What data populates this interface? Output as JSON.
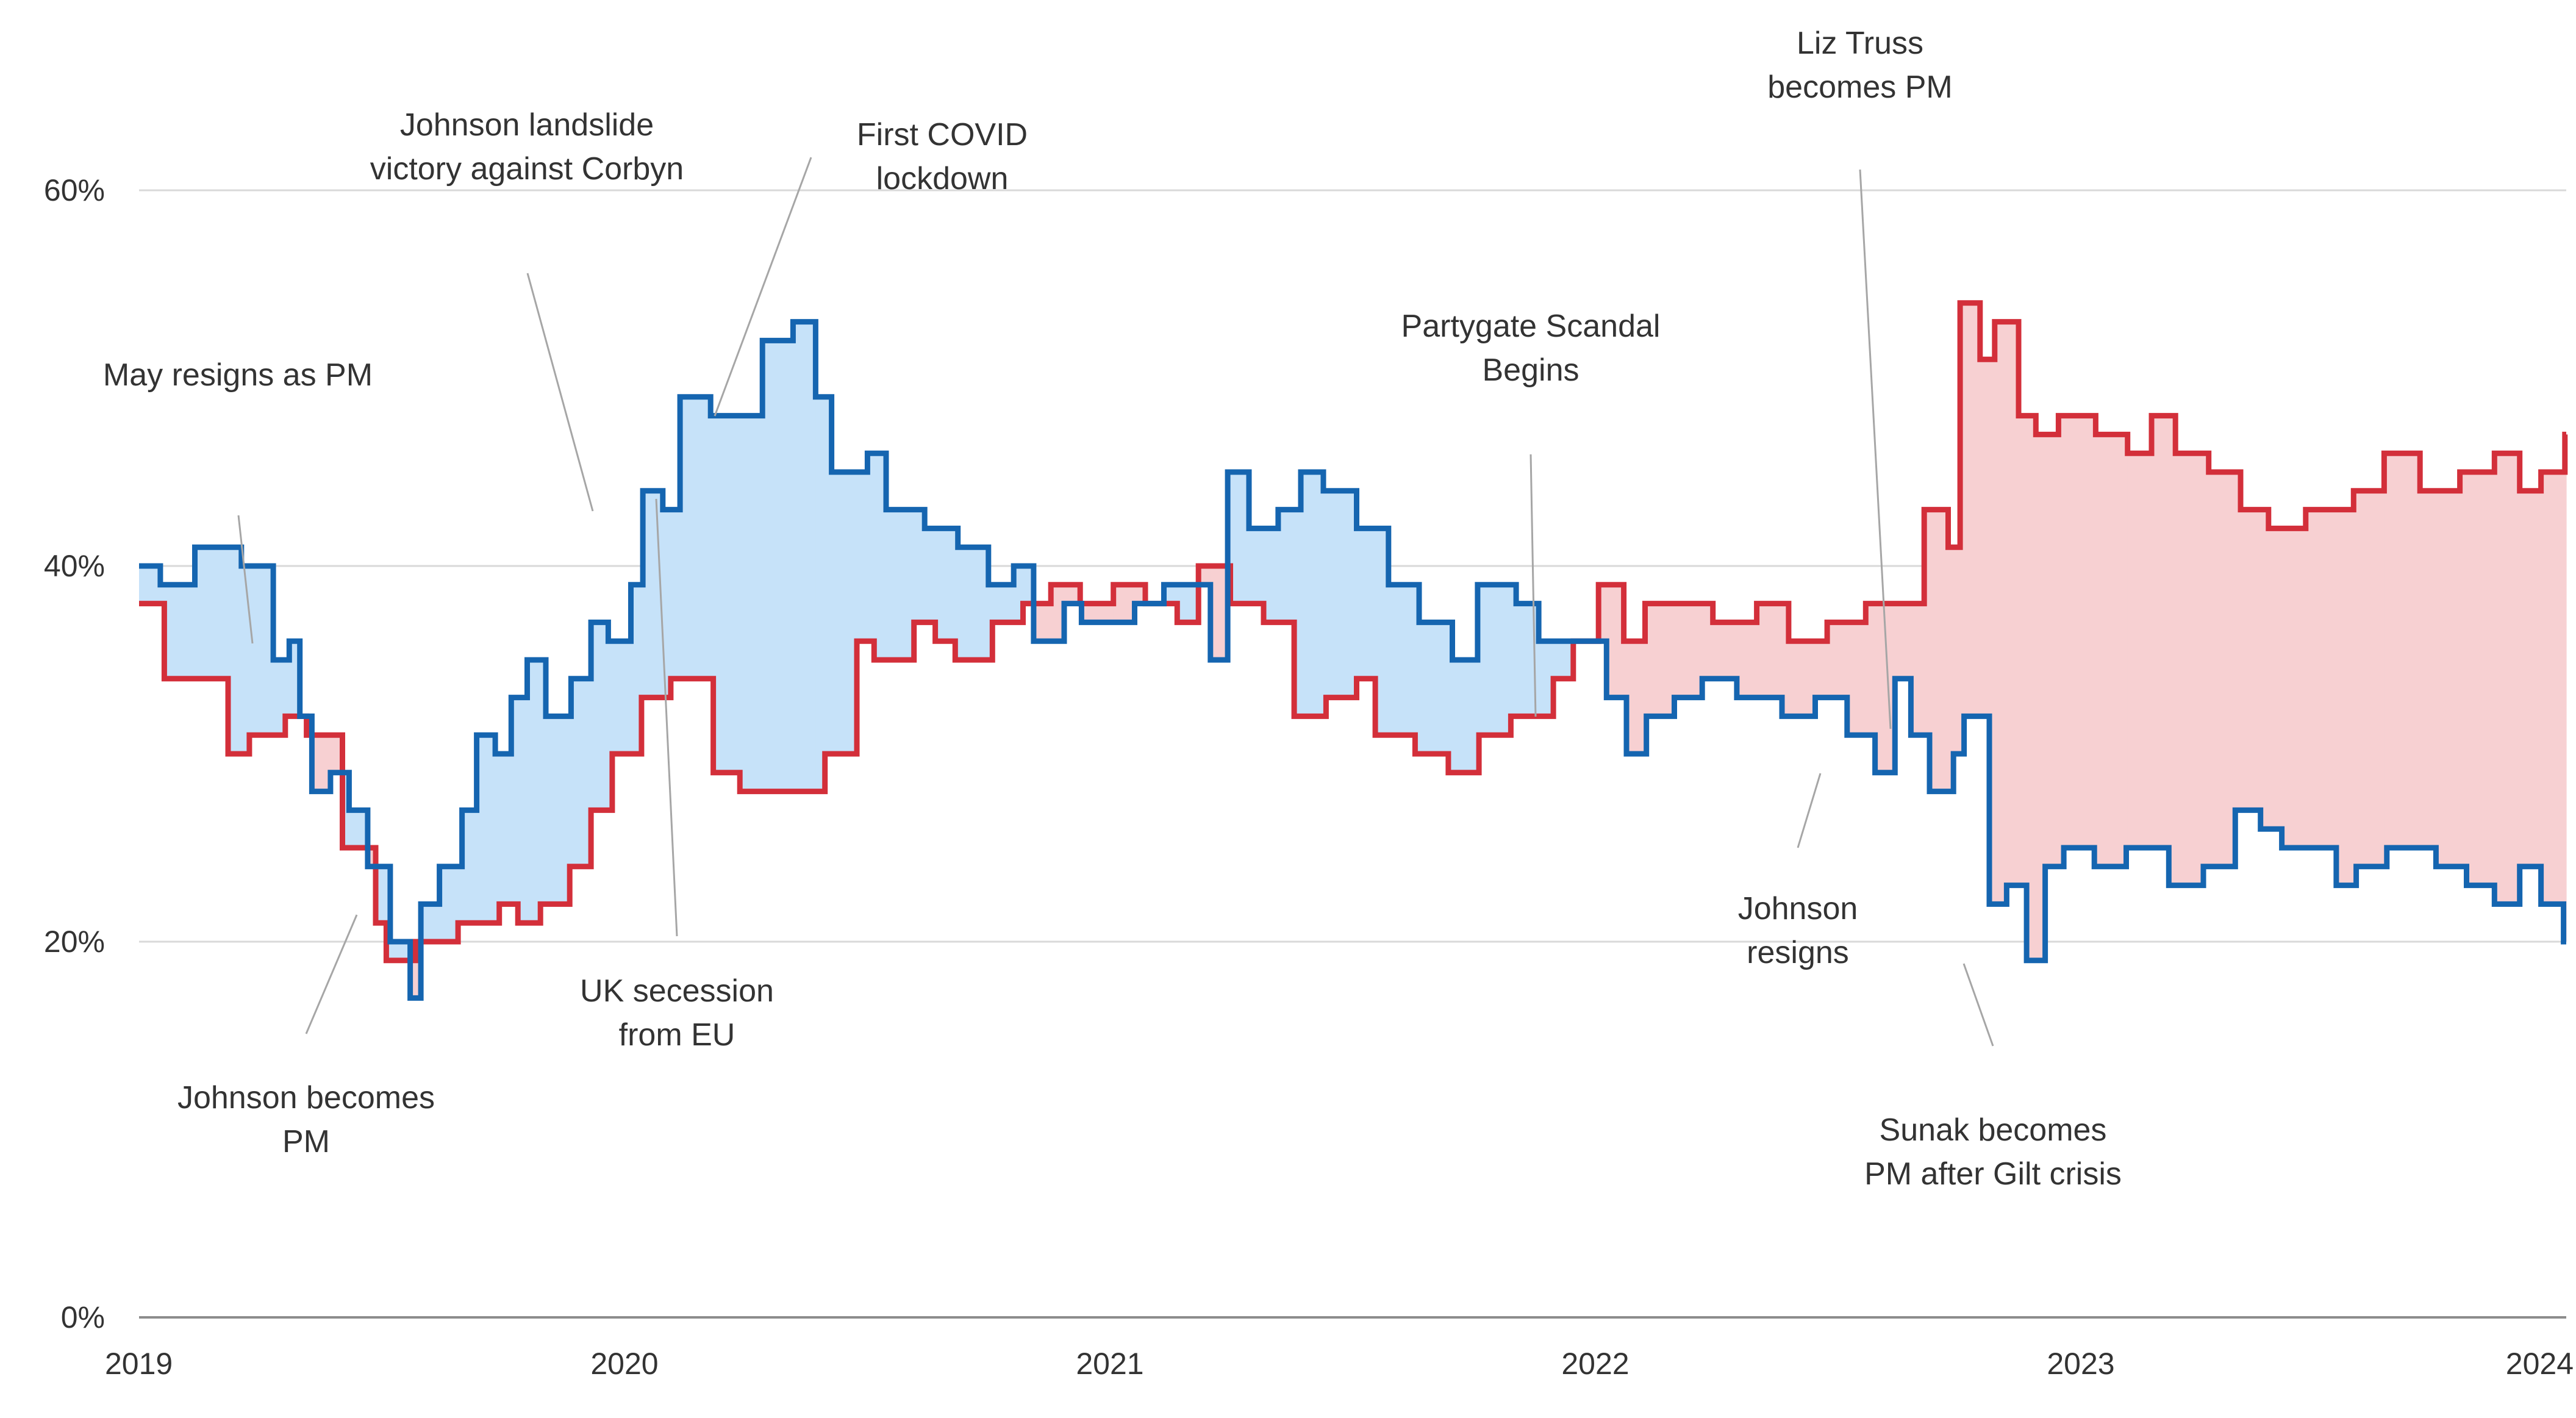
{
  "chart_data": {
    "type": "line",
    "x_axis": {
      "type": "date",
      "min": "2019-01-01",
      "max": "2024-01-01",
      "tick_labels": [
        "2019",
        "2020",
        "2021",
        "2022",
        "2023",
        "2024"
      ]
    },
    "y_axis": {
      "min": 0,
      "max": 60,
      "unit": "%",
      "tick_labels": [
        "0%",
        "20%",
        "40%",
        "60%"
      ]
    },
    "grid": "horizontal",
    "fill_between": true,
    "colors": {
      "blue": "#1565b0",
      "red": "#d32f3a",
      "blue_fill": "#c6e2f9",
      "red_fill": "#f7d0d2"
    },
    "series": [
      {
        "color": "blue",
        "values": [
          [
            "2019-01-01",
            40
          ],
          [
            "2019-01-17",
            39
          ],
          [
            "2019-02-12",
            41
          ],
          [
            "2019-03-19",
            40
          ],
          [
            "2019-04-12",
            35
          ],
          [
            "2019-04-24",
            36
          ],
          [
            "2019-05-02",
            32
          ],
          [
            "2019-05-11",
            28
          ],
          [
            "2019-05-25",
            29
          ],
          [
            "2019-06-08",
            27
          ],
          [
            "2019-06-22",
            24
          ],
          [
            "2019-07-09",
            20
          ],
          [
            "2019-07-24",
            17
          ],
          [
            "2019-08-01",
            22
          ],
          [
            "2019-08-15",
            24
          ],
          [
            "2019-09-01",
            27
          ],
          [
            "2019-09-12",
            31
          ],
          [
            "2019-09-26",
            30
          ],
          [
            "2019-10-08",
            33
          ],
          [
            "2019-10-20",
            35
          ],
          [
            "2019-11-03",
            32
          ],
          [
            "2019-11-22",
            34
          ],
          [
            "2019-12-07",
            37
          ],
          [
            "2019-12-20",
            36
          ],
          [
            "2020-01-06",
            39
          ],
          [
            "2020-01-15",
            44
          ],
          [
            "2020-01-30",
            43
          ],
          [
            "2020-02-12",
            49
          ],
          [
            "2020-03-06",
            48
          ],
          [
            "2020-04-14",
            52
          ],
          [
            "2020-05-07",
            53
          ],
          [
            "2020-05-24",
            49
          ],
          [
            "2020-06-05",
            45
          ],
          [
            "2020-07-02",
            46
          ],
          [
            "2020-07-16",
            43
          ],
          [
            "2020-08-14",
            42
          ],
          [
            "2020-09-08",
            41
          ],
          [
            "2020-10-01",
            39
          ],
          [
            "2020-10-20",
            40
          ],
          [
            "2020-11-04",
            36
          ],
          [
            "2020-11-27",
            38
          ],
          [
            "2020-12-10",
            37
          ],
          [
            "2021-01-19",
            38
          ],
          [
            "2021-02-10",
            39
          ],
          [
            "2021-03-17",
            35
          ],
          [
            "2021-03-30",
            45
          ],
          [
            "2021-04-15",
            42
          ],
          [
            "2021-05-07",
            43
          ],
          [
            "2021-05-24",
            45
          ],
          [
            "2021-06-10",
            44
          ],
          [
            "2021-07-05",
            42
          ],
          [
            "2021-07-29",
            39
          ],
          [
            "2021-08-21",
            37
          ],
          [
            "2021-09-15",
            35
          ],
          [
            "2021-10-04",
            39
          ],
          [
            "2021-11-02",
            38
          ],
          [
            "2021-11-19",
            36
          ],
          [
            "2022-01-09",
            33
          ],
          [
            "2022-01-24",
            30
          ],
          [
            "2022-02-08",
            32
          ],
          [
            "2022-03-01",
            33
          ],
          [
            "2022-03-22",
            34
          ],
          [
            "2022-04-17",
            33
          ],
          [
            "2022-05-21",
            32
          ],
          [
            "2022-06-15",
            33
          ],
          [
            "2022-07-09",
            31
          ],
          [
            "2022-07-30",
            29
          ],
          [
            "2022-08-14",
            34
          ],
          [
            "2022-08-26",
            31
          ],
          [
            "2022-09-09",
            28
          ],
          [
            "2022-09-27",
            30
          ],
          [
            "2022-10-05",
            32
          ],
          [
            "2022-10-24",
            22
          ],
          [
            "2022-11-06",
            23
          ],
          [
            "2022-11-21",
            19
          ],
          [
            "2022-12-05",
            24
          ],
          [
            "2022-12-19",
            25
          ],
          [
            "2023-01-11",
            24
          ],
          [
            "2023-02-04",
            25
          ],
          [
            "2023-03-08",
            23
          ],
          [
            "2023-04-03",
            24
          ],
          [
            "2023-04-27",
            27
          ],
          [
            "2023-05-16",
            26
          ],
          [
            "2023-06-01",
            25
          ],
          [
            "2023-07-12",
            23
          ],
          [
            "2023-07-27",
            24
          ],
          [
            "2023-08-19",
            25
          ],
          [
            "2023-09-25",
            24
          ],
          [
            "2023-10-18",
            23
          ],
          [
            "2023-11-08",
            22
          ],
          [
            "2023-11-27",
            24
          ],
          [
            "2023-12-13",
            22
          ],
          [
            "2023-12-30",
            20
          ]
        ]
      },
      {
        "color": "red",
        "values": [
          [
            "2019-01-01",
            38
          ],
          [
            "2019-01-20",
            34
          ],
          [
            "2019-03-09",
            30
          ],
          [
            "2019-03-25",
            31
          ],
          [
            "2019-04-21",
            32
          ],
          [
            "2019-05-07",
            31
          ],
          [
            "2019-06-03",
            25
          ],
          [
            "2019-06-28",
            21
          ],
          [
            "2019-07-06",
            19
          ],
          [
            "2019-07-28",
            20
          ],
          [
            "2019-08-29",
            21
          ],
          [
            "2019-09-29",
            22
          ],
          [
            "2019-10-13",
            21
          ],
          [
            "2019-10-30",
            22
          ],
          [
            "2019-11-21",
            24
          ],
          [
            "2019-12-07",
            27
          ],
          [
            "2019-12-23",
            30
          ],
          [
            "2020-01-14",
            33
          ],
          [
            "2020-02-05",
            34
          ],
          [
            "2020-03-08",
            29
          ],
          [
            "2020-03-28",
            28
          ],
          [
            "2020-04-22",
            28
          ],
          [
            "2020-05-10",
            28
          ],
          [
            "2020-05-31",
            30
          ],
          [
            "2020-06-24",
            36
          ],
          [
            "2020-07-07",
            35
          ],
          [
            "2020-08-06",
            37
          ],
          [
            "2020-08-22",
            36
          ],
          [
            "2020-09-06",
            35
          ],
          [
            "2020-10-04",
            37
          ],
          [
            "2020-10-27",
            38
          ],
          [
            "2020-11-17",
            39
          ],
          [
            "2020-12-09",
            38
          ],
          [
            "2021-01-03",
            39
          ],
          [
            "2021-01-27",
            38
          ],
          [
            "2021-02-20",
            37
          ],
          [
            "2021-03-08",
            40
          ],
          [
            "2021-04-01",
            38
          ],
          [
            "2021-04-26",
            37
          ],
          [
            "2021-05-19",
            32
          ],
          [
            "2021-06-12",
            33
          ],
          [
            "2021-07-05",
            34
          ],
          [
            "2021-07-19",
            31
          ],
          [
            "2021-08-18",
            30
          ],
          [
            "2021-09-12",
            29
          ],
          [
            "2021-10-05",
            31
          ],
          [
            "2021-10-29",
            32
          ],
          [
            "2021-11-30",
            34
          ],
          [
            "2021-12-15",
            36
          ],
          [
            "2022-01-03",
            39
          ],
          [
            "2022-01-22",
            36
          ],
          [
            "2022-02-07",
            38
          ],
          [
            "2022-03-02",
            38
          ],
          [
            "2022-03-30",
            37
          ],
          [
            "2022-05-02",
            38
          ],
          [
            "2022-05-26",
            36
          ],
          [
            "2022-06-24",
            37
          ],
          [
            "2022-07-23",
            38
          ],
          [
            "2022-08-19",
            38
          ],
          [
            "2022-09-05",
            43
          ],
          [
            "2022-09-23",
            41
          ],
          [
            "2022-10-02",
            54
          ],
          [
            "2022-10-17",
            51
          ],
          [
            "2022-10-28",
            53
          ],
          [
            "2022-11-15",
            48
          ],
          [
            "2022-11-28",
            47
          ],
          [
            "2022-12-15",
            48
          ],
          [
            "2023-01-12",
            47
          ],
          [
            "2023-02-05",
            46
          ],
          [
            "2023-02-23",
            48
          ],
          [
            "2023-03-13",
            46
          ],
          [
            "2023-04-07",
            45
          ],
          [
            "2023-05-01",
            43
          ],
          [
            "2023-05-22",
            42
          ],
          [
            "2023-06-19",
            43
          ],
          [
            "2023-07-25",
            44
          ],
          [
            "2023-08-17",
            46
          ],
          [
            "2023-09-13",
            44
          ],
          [
            "2023-10-13",
            45
          ],
          [
            "2023-11-08",
            46
          ],
          [
            "2023-11-27",
            44
          ],
          [
            "2023-12-13",
            45
          ],
          [
            "2023-12-31",
            47
          ]
        ]
      }
    ],
    "annotations": [
      {
        "lines": [
          "May resigns as PM"
        ]
      },
      {
        "lines": [
          "Johnson becomes",
          "PM"
        ]
      },
      {
        "lines": [
          "Johnson landslide",
          "victory against Corbyn"
        ]
      },
      {
        "lines": [
          "UK secession",
          "from EU"
        ]
      },
      {
        "lines": [
          "First COVID",
          "lockdown"
        ]
      },
      {
        "lines": [
          "Partygate Scandal",
          "Begins"
        ]
      },
      {
        "lines": [
          "Liz Truss",
          "becomes PM"
        ]
      },
      {
        "lines": [
          "Johnson",
          "resigns"
        ]
      },
      {
        "lines": [
          "Sunak becomes",
          "PM after Gilt crisis"
        ]
      }
    ]
  }
}
